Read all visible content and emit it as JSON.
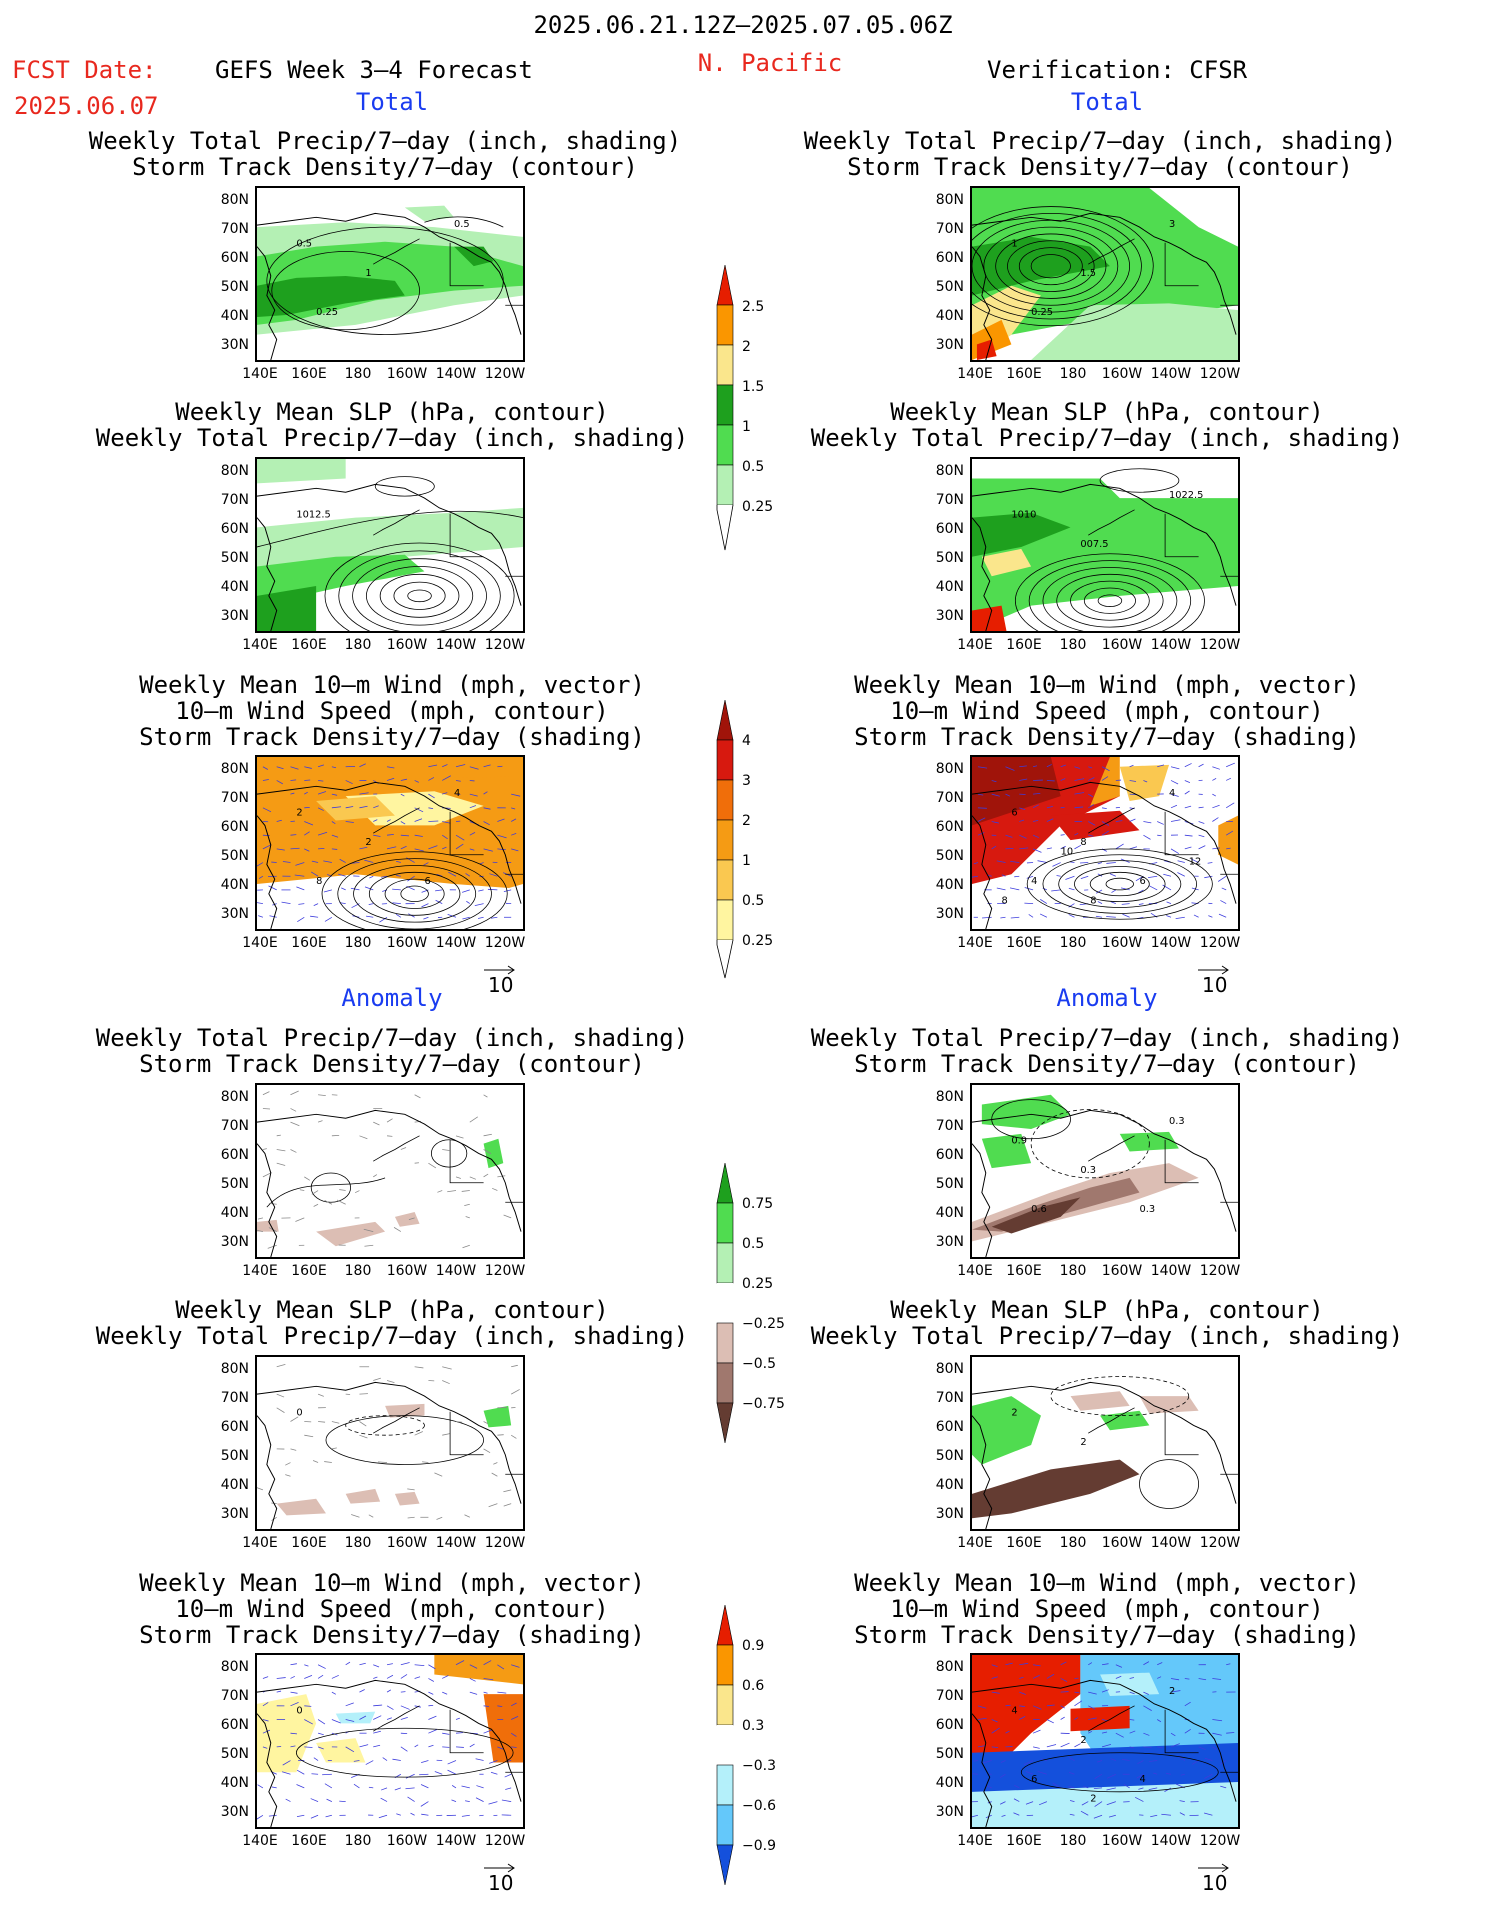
{
  "header": {
    "date_range": "2025.06.21.12Z–2025.07.05.06Z",
    "fcst_label": "FCST Date:",
    "fcst_date": "2025.06.07",
    "model": "GEFS Week 3–4 Forecast",
    "region": "N. Pacific",
    "verification": "Verification: CFSR"
  },
  "sections": {
    "total_left": "Total",
    "total_right": "Total",
    "anomaly_left": "Anomaly",
    "anomaly_right": "Anomaly"
  },
  "titles": {
    "precip_track": [
      "Weekly Total Precip/7–day (inch, shading)",
      "Storm Track Density/7–day (contour)"
    ],
    "slp_precip": [
      "Weekly Mean SLP (hPa, contour)",
      "Weekly Total Precip/7–day (inch, shading)"
    ],
    "wind_track": [
      "Weekly Mean 10–m Wind (mph, vector)",
      "10–m Wind Speed (mph, contour)",
      "Storm Track Density/7–day (shading)"
    ]
  },
  "axes": {
    "lat_ticks": [
      "80N",
      "70N",
      "60N",
      "50N",
      "40N",
      "30N"
    ],
    "lon_ticks": [
      "140E",
      "160E",
      "180",
      "160W",
      "140W",
      "120W"
    ]
  },
  "vector_ref": "10",
  "colors": {
    "title_red": "#e8281e",
    "section_blue": "#1a3cf0",
    "precip_light": "#b4f0b4",
    "precip_mid": "#50dc50",
    "precip_dark": "#1ea01e",
    "precip_yellow": "#fae68c",
    "precip_orange": "#fa9600",
    "precip_red": "#e61e00",
    "dry_light": "#dcbeb4",
    "dry_mid": "#a0786e",
    "dry_dark": "#643c32",
    "track_yellow": "#fff5a0",
    "track_lorange": "#fac850",
    "track_orange": "#f59b14",
    "track_dorange": "#f06e0a",
    "track_red": "#d7190f",
    "track_dred": "#a0140a",
    "anom_lblue": "#b4f0fa",
    "anom_mblue": "#64c8fa",
    "anom_blue": "#3c8cf0",
    "anom_dblue": "#1450dc"
  },
  "chart_data": [
    {
      "type": "heatmap",
      "name": "Total precip colorbar",
      "levels": [
        0.25,
        0.5,
        1,
        1.5,
        2,
        2.5
      ],
      "level_labels": [
        "0.25",
        "0.5",
        "1",
        "1.5",
        "2",
        "2.5"
      ]
    },
    {
      "type": "heatmap",
      "name": "Total storm track density colorbar",
      "levels": [
        0.25,
        0.5,
        1,
        2,
        3,
        4
      ],
      "level_labels": [
        "0.25",
        "0.5",
        "1",
        "2",
        "3",
        "4"
      ]
    },
    {
      "type": "heatmap",
      "name": "Precip anomaly colorbar",
      "levels": [
        -0.75,
        -0.5,
        -0.25,
        0.25,
        0.5,
        0.75
      ],
      "level_labels": [
        "−0.75",
        "−0.5",
        "−0.25",
        "0.25",
        "0.5",
        "0.75"
      ]
    },
    {
      "type": "heatmap",
      "name": "Storm track density anomaly colorbar",
      "levels": [
        -0.9,
        -0.6,
        -0.3,
        0.3,
        0.6,
        0.9
      ],
      "level_labels": [
        "−0.9",
        "−0.6",
        "−0.3",
        "0.3",
        "0.6",
        "0.9"
      ]
    }
  ],
  "contour_labels": {
    "p1": [
      "0.5",
      "1",
      "0.5",
      "0.25"
    ],
    "p2": [
      "1",
      "1.5",
      "3",
      "0.25"
    ],
    "p3": [
      "1012.5"
    ],
    "p4": [
      "1010",
      "007.5",
      "1022.5"
    ],
    "p5": [
      "2",
      "2",
      "4",
      "8",
      "6"
    ],
    "p6": [
      "6",
      "8",
      "4",
      "4",
      "6",
      "8",
      "12",
      "10",
      "8"
    ],
    "p8": [
      "0.9",
      "0.3",
      "0.3",
      "0.6",
      "0.3"
    ],
    "p9": [
      "0"
    ],
    "p10": [
      "2",
      "2"
    ],
    "p11": [
      "0"
    ],
    "p12": [
      "4",
      "2",
      "2",
      "6",
      "4",
      "2"
    ]
  }
}
